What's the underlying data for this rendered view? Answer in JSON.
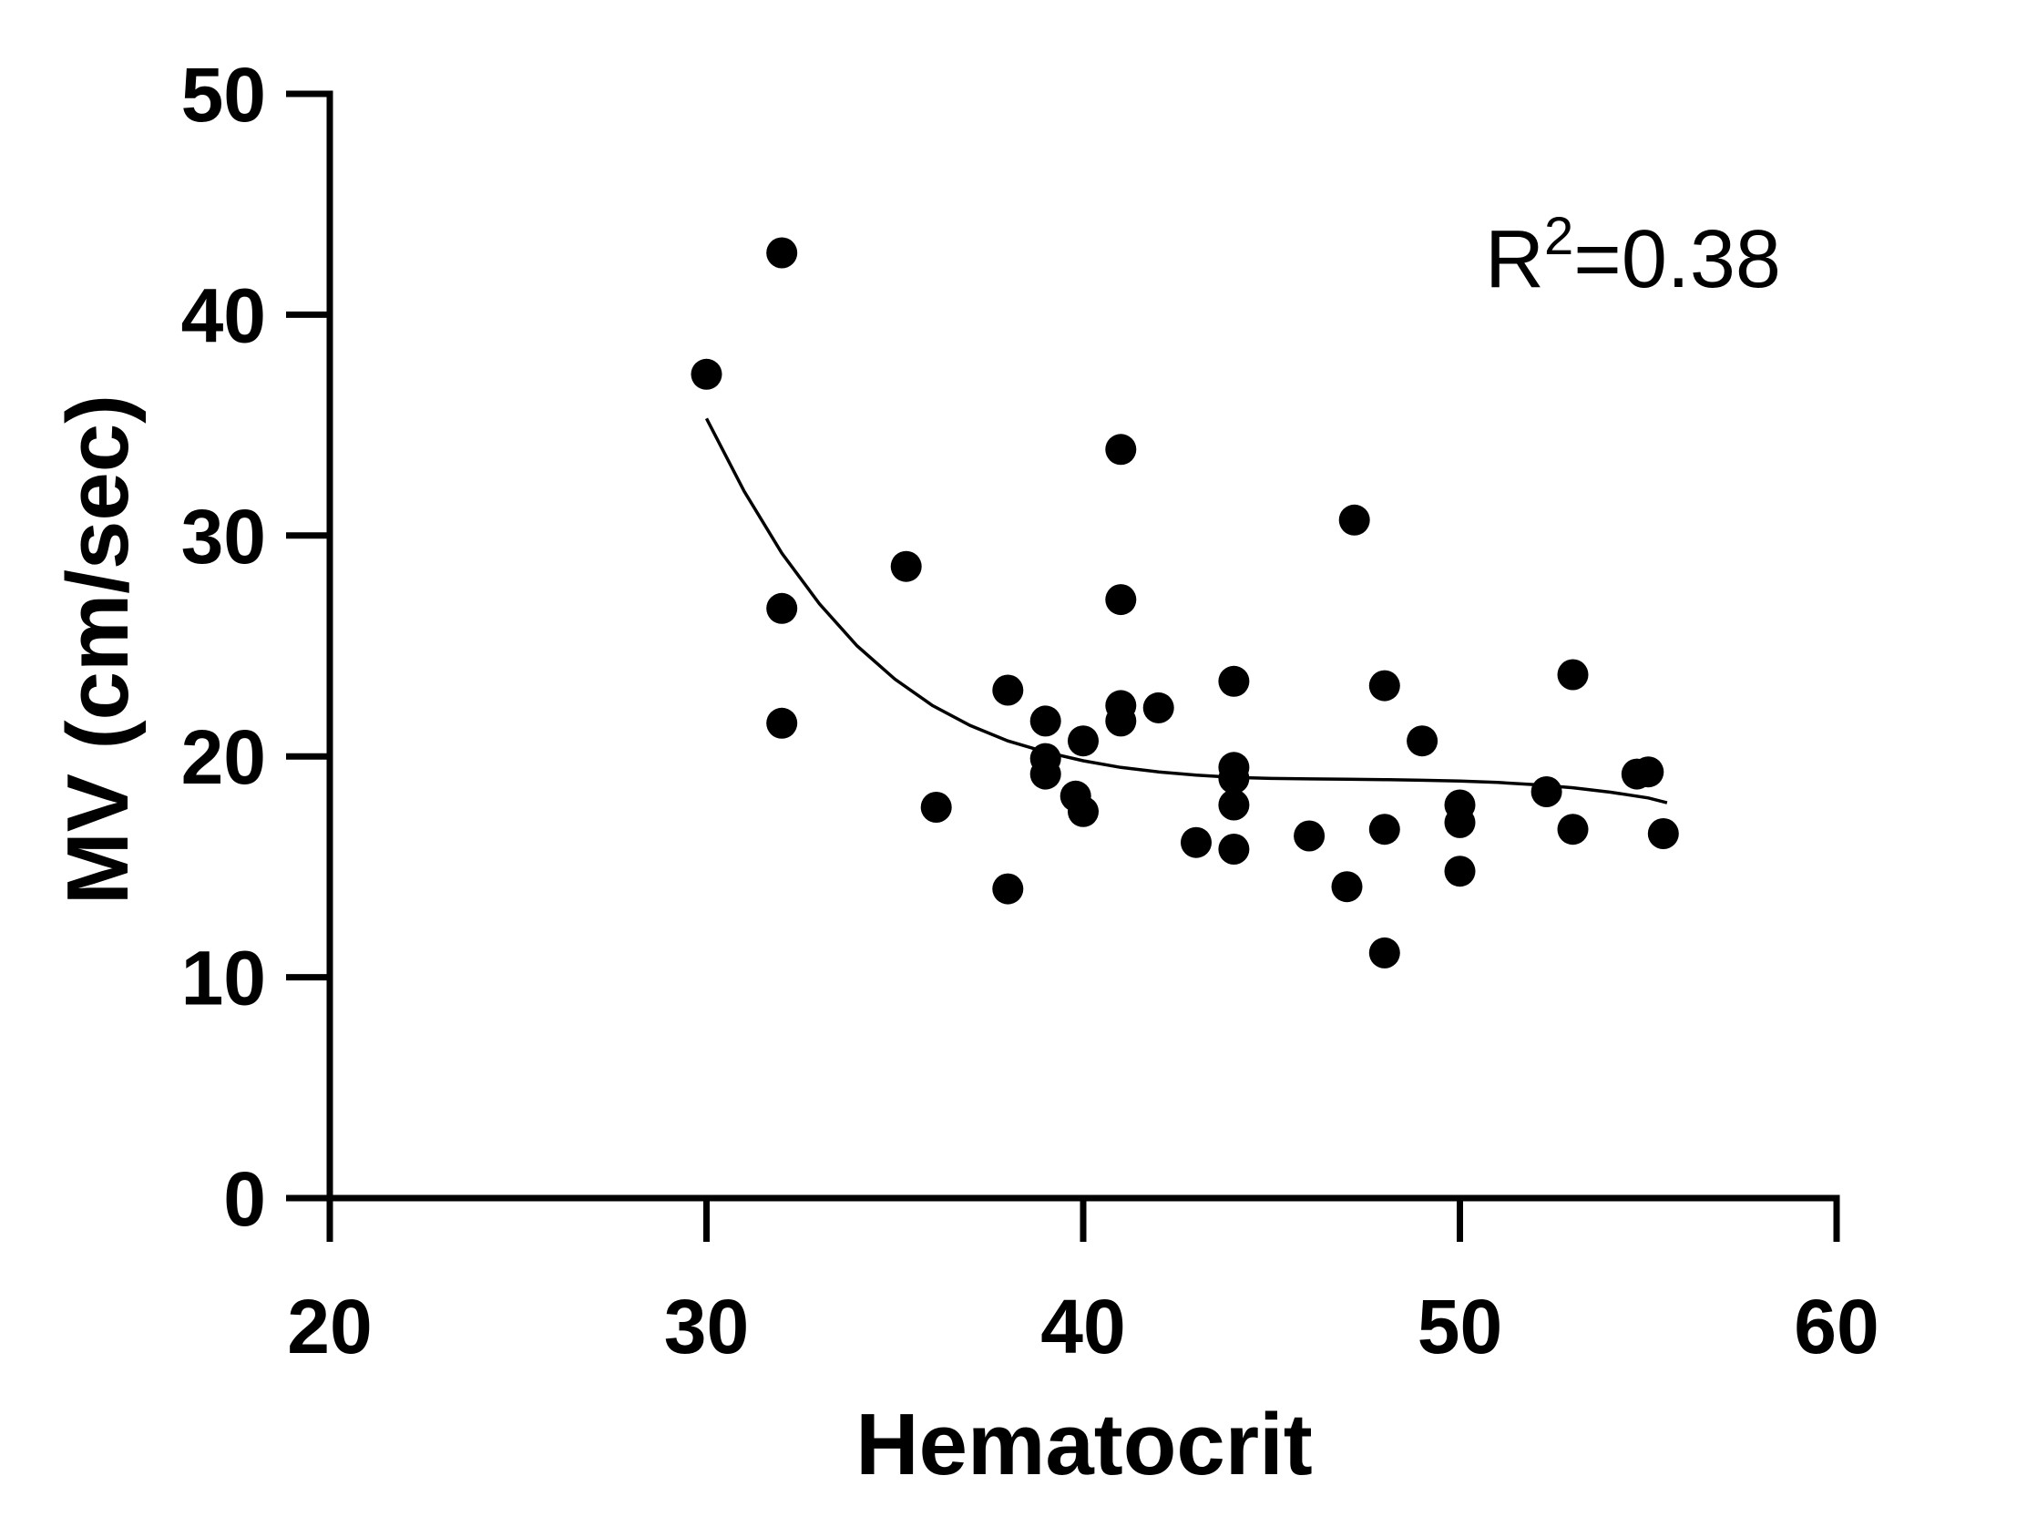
{
  "chart_data": {
    "type": "scatter",
    "title": "",
    "xlabel": "Hematocrit",
    "ylabel": "MV (cm/sec)",
    "xlim": [
      20,
      60
    ],
    "ylim": [
      0,
      50
    ],
    "x_ticks": [
      "20",
      "30",
      "40",
      "50",
      "60"
    ],
    "y_ticks": [
      "0",
      "10",
      "20",
      "30",
      "40",
      "50"
    ],
    "grid": false,
    "legend": "none",
    "colors": {
      "points": "#000000",
      "axes": "#000000",
      "fit": "#000000"
    },
    "annotation": {
      "base": "R",
      "superscript": "2",
      "rest": "=0.38"
    },
    "series": [
      {
        "type": "scatter",
        "points": [
          [
            30,
            37.3
          ],
          [
            32,
            42.8
          ],
          [
            32,
            26.7
          ],
          [
            32,
            21.5
          ],
          [
            35.3,
            28.6
          ],
          [
            36.1,
            17.7
          ],
          [
            38,
            23.0
          ],
          [
            38,
            14.0
          ],
          [
            39,
            21.6
          ],
          [
            39,
            19.9
          ],
          [
            39,
            19.2
          ],
          [
            39.8,
            18.2
          ],
          [
            40,
            20.7
          ],
          [
            40,
            17.5
          ],
          [
            41,
            33.9
          ],
          [
            41,
            27.1
          ],
          [
            41,
            22.3
          ],
          [
            41,
            21.6
          ],
          [
            42,
            22.2
          ],
          [
            43,
            16.1
          ],
          [
            44,
            23.4
          ],
          [
            44,
            19.5
          ],
          [
            44,
            19.0
          ],
          [
            44,
            17.8
          ],
          [
            44,
            15.8
          ],
          [
            46,
            16.4
          ],
          [
            47,
            14.1
          ],
          [
            47.2,
            30.7
          ],
          [
            48,
            23.2
          ],
          [
            48,
            16.7
          ],
          [
            48,
            11.1
          ],
          [
            49,
            20.7
          ],
          [
            50,
            17.8
          ],
          [
            50,
            17.0
          ],
          [
            50,
            14.8
          ],
          [
            52.3,
            18.4
          ],
          [
            53,
            23.7
          ],
          [
            53,
            16.7
          ],
          [
            54.7,
            19.2
          ],
          [
            55,
            19.3
          ],
          [
            55.4,
            16.5
          ]
        ]
      },
      {
        "type": "line",
        "name": "fit",
        "points": [
          [
            30,
            35.3
          ],
          [
            31,
            32.0
          ],
          [
            32,
            29.2
          ],
          [
            33,
            26.9
          ],
          [
            34,
            25.0
          ],
          [
            35,
            23.5
          ],
          [
            36,
            22.3
          ],
          [
            37,
            21.4
          ],
          [
            38,
            20.7
          ],
          [
            39,
            20.2
          ],
          [
            40,
            19.8
          ],
          [
            41,
            19.5
          ],
          [
            42,
            19.3
          ],
          [
            43,
            19.15
          ],
          [
            44,
            19.05
          ],
          [
            45,
            19.0
          ],
          [
            46,
            18.98
          ],
          [
            47,
            18.97
          ],
          [
            48,
            18.95
          ],
          [
            49,
            18.92
          ],
          [
            50,
            18.88
          ],
          [
            51,
            18.82
          ],
          [
            52,
            18.72
          ],
          [
            53,
            18.58
          ],
          [
            54,
            18.38
          ],
          [
            55,
            18.12
          ],
          [
            55.5,
            17.9
          ]
        ]
      }
    ]
  }
}
